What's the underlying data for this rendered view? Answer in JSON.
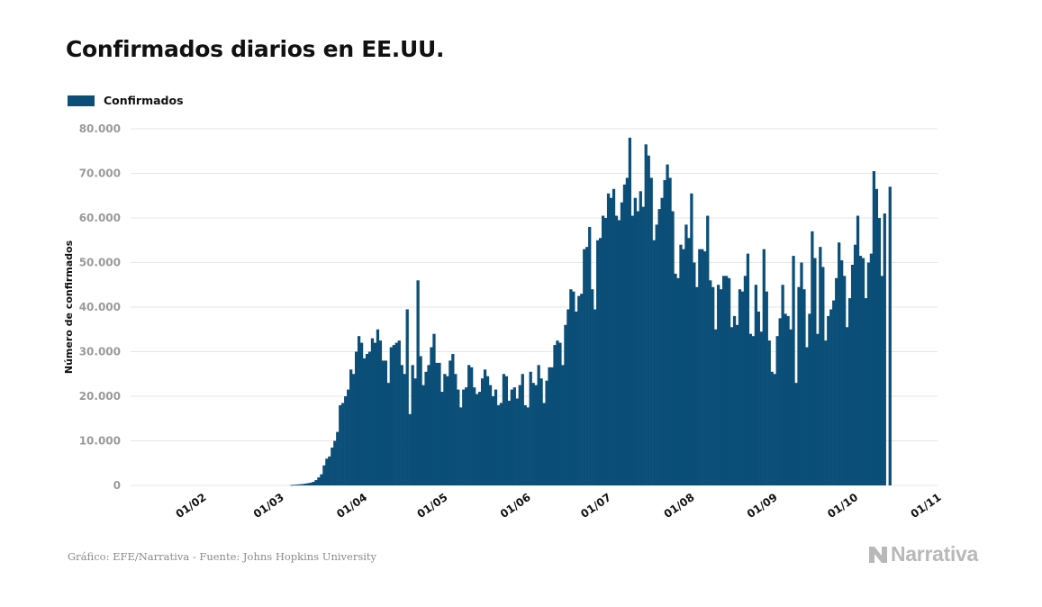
{
  "title": "Confirmados diarios en EE.UU.",
  "legend": {
    "label": "Confirmados",
    "color": "#0b4f78"
  },
  "footer": "Gráfico: EFE/Narrativa - Fuente: Johns Hopkins University",
  "brand": {
    "name": "Narrativa",
    "icon": "narrativa-logo"
  },
  "chart_data": {
    "type": "bar",
    "title": "Confirmados diarios en EE.UU.",
    "ylabel": "Número de confirmados",
    "xlabel": "",
    "ylim": [
      0,
      80000
    ],
    "yticks": [
      "0",
      "10.000",
      "20.000",
      "30.000",
      "40.000",
      "50.000",
      "60.000",
      "70.000",
      "80.000"
    ],
    "xticks": [
      "01/02",
      "01/03",
      "01/04",
      "01/05",
      "01/06",
      "01/07",
      "01/08",
      "01/09",
      "01/10",
      "01/11"
    ],
    "grid": true,
    "legend_position": "top-left",
    "series": [
      {
        "name": "Confirmados",
        "color": "#0b4f78"
      }
    ],
    "x_start": "2020-01-22",
    "x_end": "2020-10-22",
    "values": [
      0,
      0,
      0,
      0,
      0,
      0,
      0,
      0,
      0,
      0,
      0,
      0,
      0,
      0,
      0,
      0,
      0,
      0,
      0,
      0,
      0,
      0,
      0,
      0,
      0,
      0,
      0,
      0,
      0,
      0,
      0,
      0,
      0,
      0,
      0,
      0,
      0,
      0,
      0,
      0,
      0,
      0,
      0,
      0,
      0,
      0,
      0,
      100,
      150,
      200,
      250,
      300,
      400,
      500,
      600,
      800,
      1200,
      1800,
      2500,
      4500,
      6000,
      6500,
      8500,
      10000,
      12000,
      18000,
      18500,
      20000,
      21500,
      26000,
      25000,
      30000,
      33500,
      32000,
      28500,
      29500,
      30000,
      33000,
      32000,
      35000,
      32500,
      28000,
      28000,
      23000,
      31000,
      31500,
      32000,
      32500,
      27000,
      25000,
      39500,
      16000,
      27000,
      24000,
      46000,
      29000,
      22500,
      25500,
      27000,
      31000,
      34000,
      27500,
      27500,
      21000,
      25000,
      24500,
      28000,
      29500,
      25000,
      21500,
      17500,
      21500,
      22000,
      27000,
      26500,
      22000,
      20500,
      21000,
      24000,
      26000,
      24500,
      22500,
      20000,
      21500,
      18000,
      18500,
      25000,
      24500,
      19000,
      21500,
      22000,
      19500,
      22500,
      25000,
      18000,
      17500,
      25500,
      23000,
      22500,
      27000,
      24000,
      18500,
      23500,
      26500,
      26500,
      31500,
      32500,
      32000,
      27000,
      36000,
      39500,
      44000,
      43500,
      39000,
      42500,
      43000,
      53000,
      53500,
      58000,
      44000,
      39500,
      55000,
      55500,
      60500,
      60000,
      65500,
      64500,
      66500,
      60500,
      59500,
      63500,
      67500,
      69000,
      78000,
      60500,
      64500,
      61500,
      66000,
      62500,
      76500,
      74000,
      69000,
      55000,
      58500,
      62000,
      64500,
      68500,
      72000,
      69000,
      61500,
      47500,
      46500,
      54000,
      53000,
      58500,
      55500,
      65500,
      50000,
      44500,
      53000,
      53000,
      52500,
      60500,
      46000,
      44500,
      35000,
      45000,
      44000,
      47000,
      47000,
      46500,
      35500,
      38000,
      36000,
      44000,
      43500,
      47000,
      52000,
      34000,
      33500,
      45000,
      39000,
      34500,
      53000,
      43500,
      32500,
      25500,
      25000,
      33500,
      37500,
      45000,
      38500,
      38000,
      35000,
      51500,
      23000,
      44500,
      50000,
      44000,
      31000,
      38500,
      57000,
      51000,
      34000,
      53500,
      49000,
      32500,
      38000,
      39500,
      41500,
      46500,
      54500,
      50500,
      47000,
      35500,
      42000,
      49500,
      54000,
      60500,
      51500,
      51000,
      42000,
      50000,
      52000,
      70500,
      66500,
      60000,
      47000,
      61000,
      0,
      67000
    ]
  }
}
